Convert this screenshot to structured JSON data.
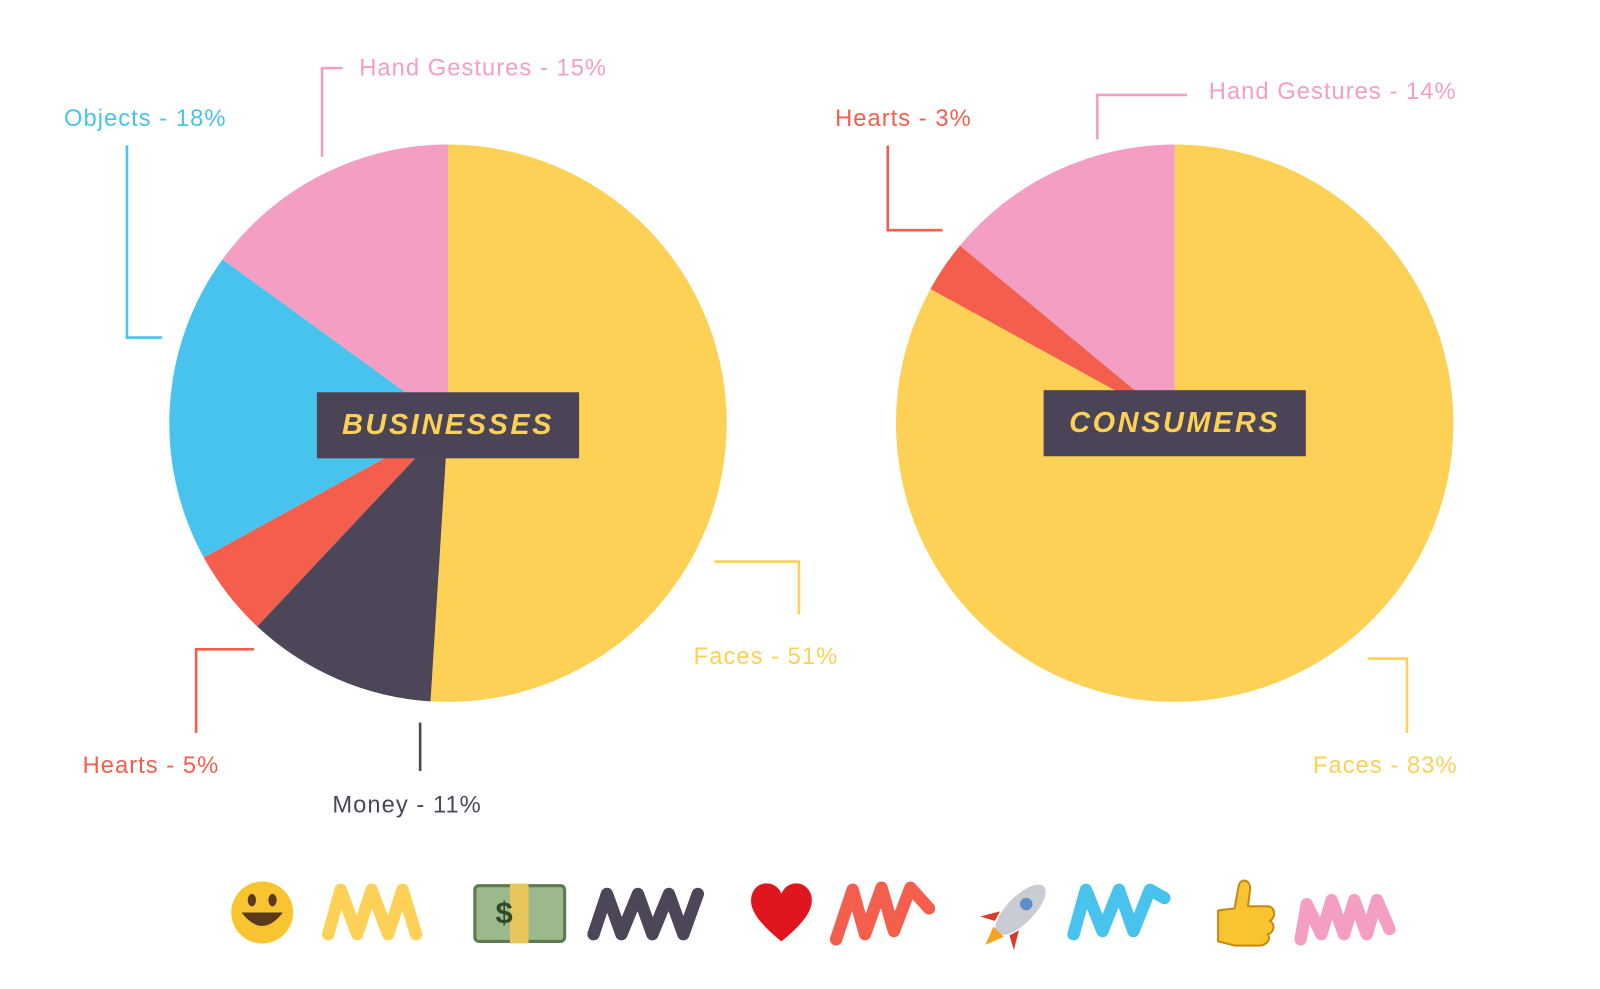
{
  "chart_data": [
    {
      "type": "pie",
      "title": "BUSINESSES",
      "values": [
        51,
        11,
        5,
        18,
        15
      ],
      "value_labels": [
        "Faces - 51%",
        "Money - 11%",
        "Hearts - 5%",
        "Objects - 18%",
        "Hand Gestures - 15%"
      ],
      "colors": [
        "#fdd155",
        "#4d4558",
        "#f35f4c",
        "#47c3ee",
        "#f49ec4"
      ]
    },
    {
      "type": "pie",
      "title": "CONSUMERS",
      "values": [
        83,
        3,
        14
      ],
      "value_labels": [
        "Faces - 83%",
        "Hearts - 3%",
        "Hand Gestures - 14%"
      ],
      "colors": [
        "#fdd155",
        "#f35f4c",
        "#f49ec4"
      ]
    }
  ]
}
